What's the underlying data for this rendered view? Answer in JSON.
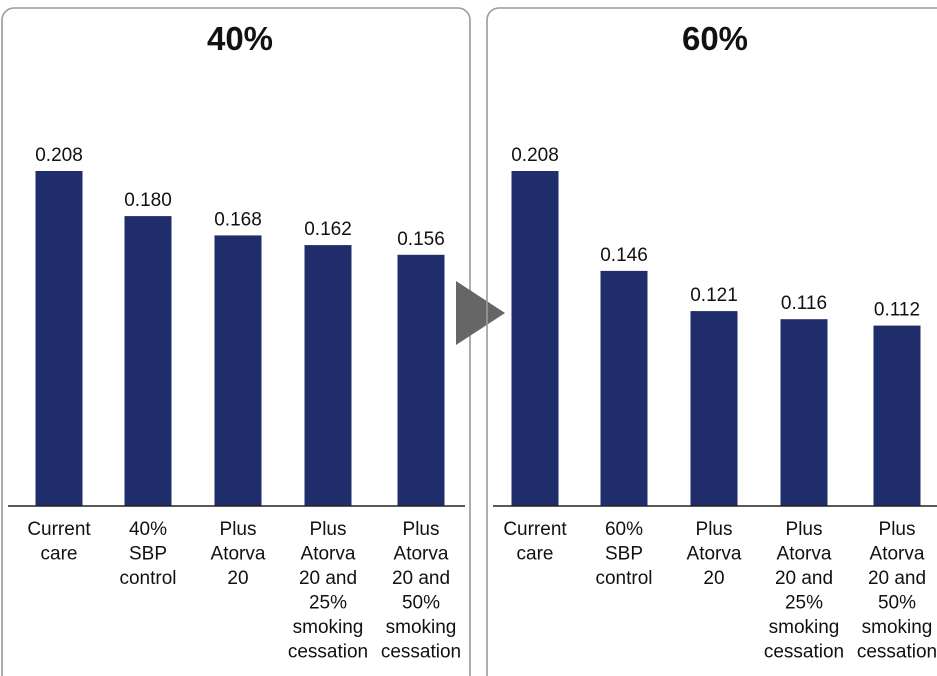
{
  "colors": {
    "bar": "#1f2d6b",
    "panel_border": "#9a9a9a",
    "arrow": "#666666",
    "baseline": "#222222"
  },
  "chart_data": [
    {
      "type": "bar",
      "title": "40%",
      "categories": [
        "Current care",
        "40% SBP control",
        "Plus Atorva 20",
        "Plus Atorva 20 and 25% smoking cessation",
        "Plus Atorva 20 and 50% smoking cessation"
      ],
      "category_lines": [
        [
          "Current",
          "care"
        ],
        [
          "40%",
          "SBP",
          "control"
        ],
        [
          "Plus",
          "Atorva",
          "20"
        ],
        [
          "Plus",
          "Atorva",
          "20 and",
          "25%",
          "smoking",
          "cessation"
        ],
        [
          "Plus",
          "Atorva",
          "20 and",
          "50%",
          "smoking",
          "cessation"
        ]
      ],
      "values": [
        0.208,
        0.18,
        0.168,
        0.162,
        0.156
      ],
      "value_labels": [
        "0.208",
        "0.180",
        "0.168",
        "0.162",
        "0.156"
      ],
      "ylim": [
        0,
        0.208
      ],
      "grid": false,
      "xlabel": "",
      "ylabel": ""
    },
    {
      "type": "bar",
      "title": "60%",
      "categories": [
        "Current care",
        "60% SBP control",
        "Plus Atorva 20",
        "Plus Atorva 20 and 25% smoking cessation",
        "Plus Atorva 20 and 50% smoking cessation"
      ],
      "category_lines": [
        [
          "Current",
          "care"
        ],
        [
          "60%",
          "SBP",
          "control"
        ],
        [
          "Plus",
          "Atorva",
          "20"
        ],
        [
          "Plus",
          "Atorva",
          "20 and",
          "25%",
          "smoking",
          "cessation"
        ],
        [
          "Plus",
          "Atorva",
          "20 and",
          "50%",
          "smoking",
          "cessation"
        ]
      ],
      "values": [
        0.208,
        0.146,
        0.121,
        0.116,
        0.112
      ],
      "value_labels": [
        "0.208",
        "0.146",
        "0.121",
        "0.116",
        "0.112"
      ],
      "ylim": [
        0,
        0.208
      ],
      "grid": false,
      "xlabel": "",
      "ylabel": ""
    }
  ]
}
